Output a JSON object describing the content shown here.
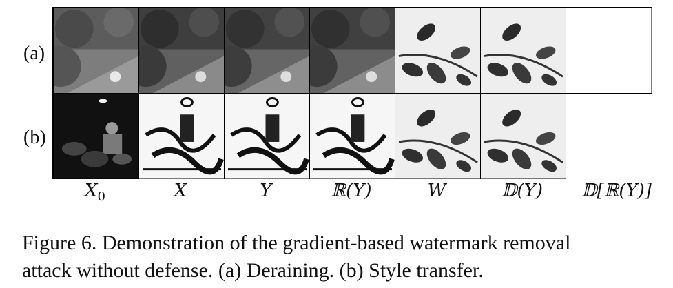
{
  "rows": [
    {
      "label": "(a)",
      "kind": "garden"
    },
    {
      "label": "(b)",
      "kind": "stylized"
    }
  ],
  "column_labels": [
    "X0",
    "X",
    "Y",
    "ℝ(Y)",
    "W",
    "𝔻(Y)",
    "𝔻[ℝ(Y)]"
  ],
  "column_label_parts": {
    "x0_main": "X",
    "x0_sub": "0"
  },
  "caption": {
    "line1": "Figure 6. Demonstration of the gradient-based watermark removal",
    "line2": "attack without defense. (a) Deraining. (b) Style transfer."
  }
}
